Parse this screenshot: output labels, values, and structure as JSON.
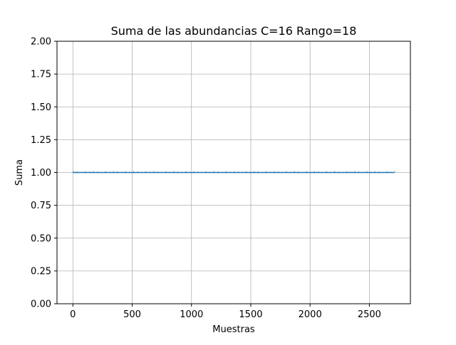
{
  "chart_data": {
    "type": "line",
    "title": "Suma de las abundancias C=16 Rango=18",
    "xlabel": "Muestras",
    "ylabel": "Suma",
    "xlim": [
      -134,
      2846
    ],
    "ylim": [
      0,
      2
    ],
    "grid": true,
    "x_ticks": [
      0,
      500,
      1000,
      1500,
      2000,
      2500
    ],
    "y_ticks": [
      0.0,
      0.25,
      0.5,
      0.75,
      1.0,
      1.25,
      1.5,
      1.75,
      2.0
    ],
    "x_tick_labels": [
      "0",
      "500",
      "1000",
      "1500",
      "2000",
      "2500"
    ],
    "y_tick_labels": [
      "0.00",
      "0.25",
      "0.50",
      "0.75",
      "1.00",
      "1.25",
      "1.50",
      "1.75",
      "2.00"
    ],
    "series": [
      {
        "color": "#1f77b4",
        "x_start": 0,
        "x_end": 2712,
        "value": 1.0
      }
    ]
  }
}
